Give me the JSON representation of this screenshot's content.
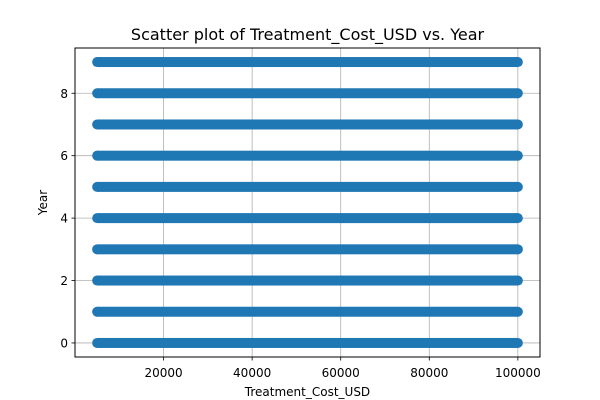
{
  "chart_data": {
    "type": "scatter",
    "title": "Scatter plot of Treatment_Cost_USD vs. Year",
    "xlabel": "Treatment_Cost_USD",
    "ylabel": "Year",
    "xlim": [
      0,
      105000
    ],
    "ylim": [
      -0.45,
      9.45
    ],
    "xticks": [
      20000,
      40000,
      60000,
      80000,
      100000
    ],
    "xtick_labels": [
      "20000",
      "40000",
      "60000",
      "80000",
      "100000"
    ],
    "yticks": [
      0,
      2,
      4,
      6,
      8
    ],
    "ytick_labels": [
      "0",
      "2",
      "4",
      "6",
      "8"
    ],
    "grid": true,
    "marker_color": "#1f77b4",
    "series": [
      {
        "x_min": 5000,
        "x_max": 100000,
        "y_values": [
          0,
          1,
          2,
          3,
          4,
          5,
          6,
          7,
          8,
          9
        ]
      }
    ]
  }
}
